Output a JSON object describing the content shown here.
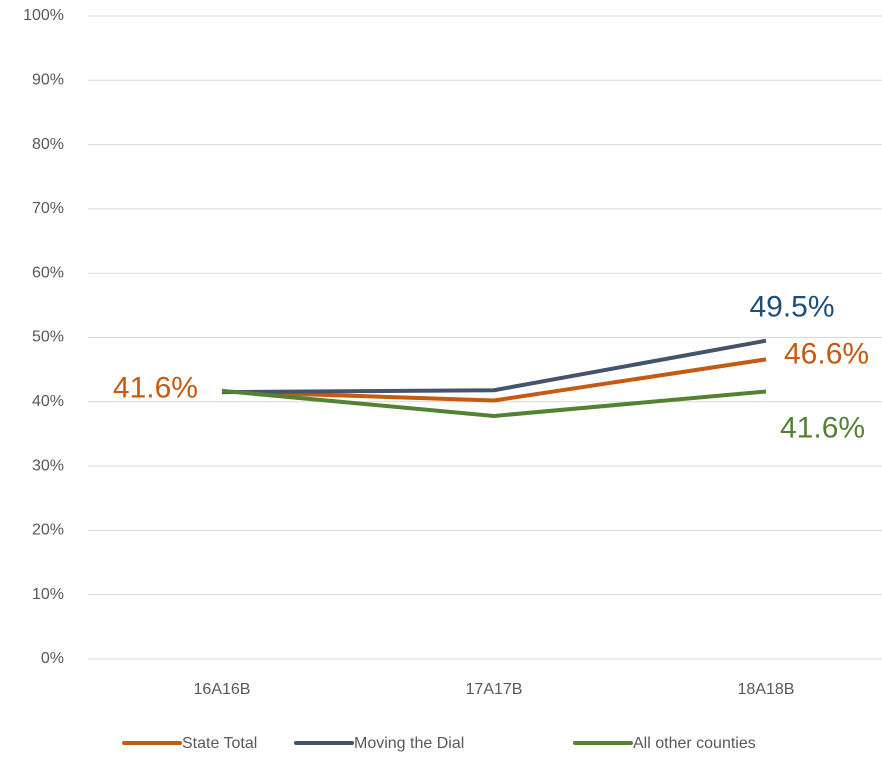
{
  "chart_data": {
    "type": "line",
    "categories": [
      "16A16B",
      "17A17B",
      "18A18B"
    ],
    "series": [
      {
        "name": "State Total",
        "color": "#C55A11",
        "label_color": "#C55A11",
        "values": [
          41.6,
          40.2,
          46.6
        ],
        "value_labels": [
          "41.6%",
          null,
          "46.6%"
        ]
      },
      {
        "name": "Moving the Dial",
        "color": "#44546A",
        "label_color": "#1F4E79",
        "values": [
          41.5,
          41.8,
          49.5
        ],
        "value_labels": [
          null,
          null,
          "49.5%"
        ]
      },
      {
        "name": "All other counties",
        "color": "#548235",
        "label_color": "#548235",
        "values": [
          41.7,
          37.8,
          41.6
        ],
        "value_labels": [
          null,
          null,
          "41.6%"
        ]
      }
    ],
    "ylim": [
      0,
      100
    ],
    "yticks": [
      {
        "value": 0,
        "label": "0%"
      },
      {
        "value": 10,
        "label": "10%"
      },
      {
        "value": 20,
        "label": "20%"
      },
      {
        "value": 30,
        "label": "30%"
      },
      {
        "value": 40,
        "label": "40%"
      },
      {
        "value": 50,
        "label": "50%"
      },
      {
        "value": 60,
        "label": "60%"
      },
      {
        "value": 70,
        "label": "70%"
      },
      {
        "value": 80,
        "label": "80%"
      },
      {
        "value": 90,
        "label": "90%"
      },
      {
        "value": 100,
        "label": "100%"
      }
    ],
    "grid": true,
    "legend": "bottom"
  }
}
